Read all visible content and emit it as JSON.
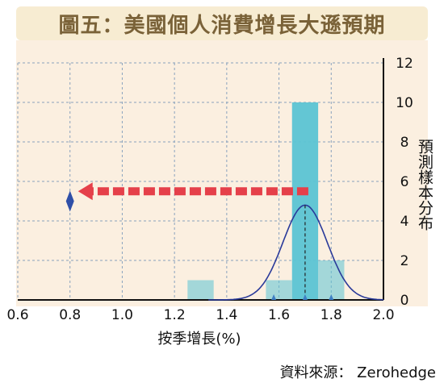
{
  "title": "圖五：美國個人消費增長大遜預期",
  "source": "資料來源： Zerohedge",
  "chart_data": {
    "type": "bar",
    "title": "圖五：美國個人消費增長大遜預期",
    "xlabel": "按季增長(%)",
    "ylabel": "預測樣本分布",
    "xlim": [
      0.6,
      2.0
    ],
    "ylim": [
      0,
      12
    ],
    "xticks": [
      "0.6",
      "0.8",
      "1.0",
      "1.2",
      "1.4",
      "1.6",
      "1.8",
      "2.0"
    ],
    "yticks": [
      "0",
      "2",
      "4",
      "6",
      "8",
      "10",
      "12"
    ],
    "grid": true,
    "bars": [
      {
        "x0": 1.25,
        "x1": 1.35,
        "value": 1
      },
      {
        "x0": 1.55,
        "x1": 1.65,
        "value": 1
      },
      {
        "x0": 1.65,
        "x1": 1.75,
        "value": 10
      },
      {
        "x0": 1.75,
        "x1": 1.85,
        "value": 2
      }
    ],
    "curve": {
      "type": "normal",
      "mean": 1.7,
      "sd": 0.085,
      "peak": 4.8
    },
    "markers": [
      {
        "x": 1.58,
        "y": 0
      },
      {
        "x": 1.7,
        "y": 0
      },
      {
        "x": 1.8,
        "y": 0
      }
    ],
    "actual": {
      "x": 0.8,
      "y": 5
    },
    "arrow": {
      "from_x": 1.7,
      "to_x": 0.8,
      "y": 5.5
    }
  }
}
